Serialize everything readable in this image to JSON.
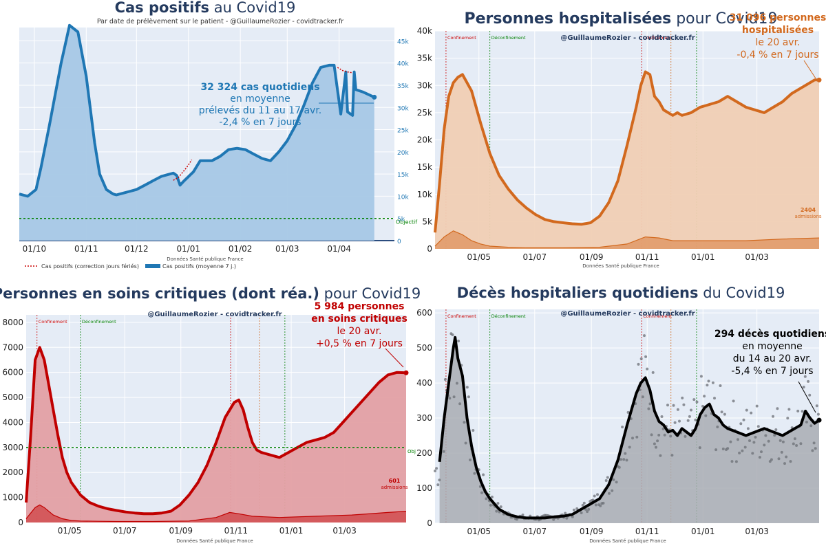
{
  "colors": {
    "blue": "#1f77b4",
    "blue_fill": "#a6c8e6",
    "orange": "#d2691e",
    "orange_fill": "#f0cfb4",
    "red": "#c00000",
    "red_fill": "#e3a0a4",
    "black": "#000000",
    "gray_fill": "#a9adb3",
    "plot_bg": "#e5ecf6",
    "navy": "#243a5e",
    "green": "#008000"
  },
  "chart_data": [
    {
      "id": "cases",
      "type": "area",
      "title_bold": "Cas positifs",
      "title_rest": " au Covid19",
      "subtitle": "Par date de prélèvement sur le patient - @GuillaumeRozier - covidtracker.fr",
      "xlabel": "Données Santé publique France",
      "y_side": "right",
      "ylim": [
        0,
        48000
      ],
      "x_range": [
        0,
        224
      ],
      "x_ticks": [
        {
          "x": 9,
          "label": "01/10"
        },
        {
          "x": 40,
          "label": "01/11"
        },
        {
          "x": 70,
          "label": "01/12"
        },
        {
          "x": 101,
          "label": "01/01"
        },
        {
          "x": 132,
          "label": "01/02"
        },
        {
          "x": 160,
          "label": "01/03"
        },
        {
          "x": 191,
          "label": "01/04"
        }
      ],
      "y_ticks": [
        {
          "v": 0,
          "label": "0"
        },
        {
          "v": 5000,
          "label": "5k"
        },
        {
          "v": 10000,
          "label": "10k"
        },
        {
          "v": 15000,
          "label": "15k"
        },
        {
          "v": 20000,
          "label": "20k"
        },
        {
          "v": 25000,
          "label": "25k"
        },
        {
          "v": 30000,
          "label": "30k"
        },
        {
          "v": 35000,
          "label": "35k"
        },
        {
          "v": 40000,
          "label": "40k"
        },
        {
          "v": 45000,
          "label": "45k"
        }
      ],
      "series": [
        {
          "name": "Cas positifs (moyenne 7 j.)",
          "x": [
            0,
            5,
            10,
            13,
            18,
            25,
            30,
            35,
            40,
            45,
            48,
            52,
            56,
            58,
            62,
            65,
            70,
            75,
            80,
            85,
            92,
            94,
            96,
            98,
            104,
            108,
            115,
            120,
            125,
            130,
            135,
            140,
            145,
            150,
            155,
            160,
            165,
            170,
            175,
            180,
            185,
            188,
            192,
            195,
            196,
            199,
            200,
            201,
            205,
            208,
            212
          ],
          "y": [
            10500,
            10000,
            11500,
            16500,
            26000,
            40000,
            48500,
            47000,
            37000,
            22000,
            15000,
            11500,
            10500,
            10300,
            10700,
            11000,
            11500,
            12500,
            13500,
            14500,
            15200,
            14700,
            12500,
            13300,
            15500,
            18000,
            18000,
            19000,
            20500,
            20800,
            20500,
            19500,
            18500,
            18000,
            20000,
            22500,
            26000,
            30500,
            35500,
            39000,
            39500,
            39500,
            28500,
            38000,
            29000,
            28200,
            38000,
            34000,
            33500,
            33000,
            32300
          ]
        },
        {
          "name": "Cas positifs (correction jours fériés)",
          "x": [
            92,
            95,
            100,
            103,
            190,
            193,
            196,
            199
          ],
          "y": [
            13600,
            14200,
            16500,
            18200,
            39000,
            38300,
            38000,
            37800
          ]
        }
      ],
      "objective": {
        "y": 5000,
        "label": "Objectif"
      },
      "legend": [
        "Cas positifs (correction jours fériés)",
        "Cas positifs (moyenne 7 j.)"
      ],
      "legend_position": "bottom-left",
      "annotation": [
        "32 324 cas quotidiens",
        "en moyenne",
        "prélevés du 11 au 17 avr.",
        "-2,4 % en 7 jours"
      ]
    },
    {
      "id": "hosp",
      "type": "area",
      "title_bold": "Personnes hospitalisées",
      "title_rest": " pour Covid19",
      "watermark": "@GuillaumeRozier - covidtracker.fr",
      "xlabel": "Données Santé publique France",
      "y_side": "left",
      "ylim": [
        0,
        40000
      ],
      "x_range": [
        0,
        420
      ],
      "x_ticks": [
        {
          "x": 48,
          "label": "01/05"
        },
        {
          "x": 109,
          "label": "01/07"
        },
        {
          "x": 171,
          "label": "01/09"
        },
        {
          "x": 232,
          "label": "01/11"
        },
        {
          "x": 293,
          "label": "01/01"
        },
        {
          "x": 352,
          "label": "01/03"
        }
      ],
      "y_ticks": [
        {
          "v": 0,
          "label": "0"
        },
        {
          "v": 5000,
          "label": "5k"
        },
        {
          "v": 10000,
          "label": "10k"
        },
        {
          "v": 15000,
          "label": "15k"
        },
        {
          "v": 20000,
          "label": "20k"
        },
        {
          "v": 25000,
          "label": "25k"
        },
        {
          "v": 30000,
          "label": "30k"
        },
        {
          "v": 35000,
          "label": "35k"
        },
        {
          "v": 40000,
          "label": "40k"
        }
      ],
      "series": [
        {
          "name": "Hospitalisations",
          "x": [
            0,
            5,
            10,
            15,
            20,
            25,
            30,
            40,
            50,
            60,
            70,
            80,
            90,
            100,
            110,
            120,
            130,
            140,
            150,
            160,
            170,
            180,
            190,
            200,
            210,
            220,
            225,
            230,
            235,
            240,
            245,
            250,
            255,
            260,
            265,
            270,
            280,
            290,
            300,
            310,
            320,
            330,
            340,
            350,
            360,
            370,
            380,
            390,
            400,
            410,
            415,
            420
          ],
          "y": [
            3000,
            12000,
            22000,
            28000,
            30500,
            31500,
            32000,
            29000,
            23000,
            17500,
            13500,
            11000,
            9000,
            7500,
            6300,
            5400,
            5000,
            4800,
            4600,
            4500,
            4800,
            6000,
            8500,
            12500,
            19000,
            26000,
            30000,
            32500,
            32000,
            28000,
            27000,
            25500,
            25000,
            24500,
            25000,
            24500,
            25000,
            26000,
            26500,
            27000,
            28000,
            27000,
            26000,
            25500,
            25000,
            26000,
            27000,
            28500,
            29500,
            30500,
            31000,
            31000
          ]
        },
        {
          "name": "Admissions",
          "x": [
            0,
            10,
            20,
            30,
            40,
            50,
            60,
            80,
            100,
            140,
            180,
            210,
            230,
            245,
            260,
            300,
            340,
            380,
            420
          ],
          "y": [
            500,
            2200,
            3300,
            2600,
            1500,
            900,
            500,
            300,
            200,
            200,
            300,
            900,
            2200,
            2000,
            1500,
            1500,
            1500,
            1800,
            2000
          ]
        }
      ],
      "vlines": [
        {
          "x": 12,
          "color": "#cc0000",
          "label": "Confinement"
        },
        {
          "x": 60,
          "color": "#008000",
          "label": "Déconfinement"
        },
        {
          "x": 226,
          "color": "#cc0000",
          "label": "Confinement"
        },
        {
          "x": 258,
          "color": "#d2691e",
          "label": ""
        },
        {
          "x": 286,
          "color": "#008000",
          "label": ""
        }
      ],
      "side_label": [
        "2404",
        "admissions"
      ],
      "annotation": [
        "31 096 personnes",
        "hospitalisées",
        "le 20 avr.",
        "-0,4 % en 7 jours"
      ]
    },
    {
      "id": "icu",
      "type": "area",
      "title_bold": "Personnes en soins critiques (dont réa.)",
      "title_rest": " pour Covid19",
      "watermark": "@GuillaumeRozier - covidtracker.fr",
      "xlabel": "Données Santé publique France",
      "y_side": "left",
      "ylim": [
        0,
        8300
      ],
      "x_range": [
        0,
        420
      ],
      "x_ticks": [
        {
          "x": 48,
          "label": "01/05"
        },
        {
          "x": 109,
          "label": "01/07"
        },
        {
          "x": 171,
          "label": "01/09"
        },
        {
          "x": 232,
          "label": "01/11"
        },
        {
          "x": 293,
          "label": "01/01"
        },
        {
          "x": 352,
          "label": "01/03"
        }
      ],
      "y_ticks": [
        {
          "v": 0,
          "label": "0"
        },
        {
          "v": 1000,
          "label": "1000"
        },
        {
          "v": 2000,
          "label": "2000"
        },
        {
          "v": 3000,
          "label": "3000"
        },
        {
          "v": 4000,
          "label": "4000"
        },
        {
          "v": 5000,
          "label": "5000"
        },
        {
          "v": 6000,
          "label": "6000"
        },
        {
          "v": 7000,
          "label": "7000"
        },
        {
          "v": 8000,
          "label": "8000"
        }
      ],
      "series": [
        {
          "name": "Soins critiques",
          "x": [
            0,
            5,
            10,
            15,
            20,
            25,
            30,
            35,
            40,
            45,
            50,
            60,
            70,
            80,
            90,
            100,
            110,
            120,
            130,
            140,
            150,
            160,
            170,
            180,
            190,
            200,
            210,
            220,
            230,
            235,
            240,
            245,
            250,
            255,
            260,
            270,
            280,
            290,
            300,
            310,
            320,
            330,
            340,
            350,
            360,
            370,
            380,
            390,
            400,
            410,
            420
          ],
          "y": [
            800,
            3500,
            6500,
            7000,
            6500,
            5500,
            4500,
            3500,
            2600,
            2000,
            1600,
            1100,
            800,
            650,
            550,
            480,
            420,
            380,
            350,
            350,
            380,
            450,
            700,
            1100,
            1600,
            2300,
            3200,
            4200,
            4800,
            4900,
            4500,
            3800,
            3200,
            2900,
            2800,
            2700,
            2600,
            2800,
            3000,
            3200,
            3300,
            3400,
            3600,
            4000,
            4400,
            4800,
            5200,
            5600,
            5900,
            6000,
            5984
          ]
        },
        {
          "name": "Admissions",
          "x": [
            0,
            10,
            15,
            20,
            30,
            40,
            50,
            60,
            80,
            100,
            140,
            180,
            210,
            225,
            235,
            250,
            280,
            320,
            360,
            400,
            420
          ],
          "y": [
            150,
            600,
            700,
            600,
            300,
            150,
            80,
            60,
            50,
            40,
            40,
            60,
            200,
            400,
            350,
            250,
            200,
            250,
            300,
            400,
            450
          ]
        }
      ],
      "vlines": [
        {
          "x": 12,
          "color": "#cc0000",
          "label": "Confinement"
        },
        {
          "x": 60,
          "color": "#008000",
          "label": "Déconfinement"
        },
        {
          "x": 226,
          "color": "#cc0000",
          "label": ""
        },
        {
          "x": 258,
          "color": "#d2691e",
          "label": ""
        },
        {
          "x": 286,
          "color": "#008000",
          "label": ""
        }
      ],
      "objective": {
        "y": 3000,
        "label": "Obj"
      },
      "side_label": [
        "601",
        "admissions"
      ],
      "annotation": [
        "5 984 personnes",
        "en soins critiques",
        "le 20 avr.",
        "+0,5 % en 7 jours"
      ]
    },
    {
      "id": "deaths",
      "type": "line",
      "title_bold": "Décès hospitaliers quotidiens",
      "title_rest": " du Covid19",
      "watermark": "@GuillaumeRozier - covidtracker.fr",
      "xlabel": "Données Santé publique France",
      "y_side": "left",
      "ylim": [
        0,
        610
      ],
      "x_range": [
        0,
        420
      ],
      "x_ticks": [
        {
          "x": 48,
          "label": "01/05"
        },
        {
          "x": 109,
          "label": "01/07"
        },
        {
          "x": 171,
          "label": "01/09"
        },
        {
          "x": 232,
          "label": "01/11"
        },
        {
          "x": 293,
          "label": "01/01"
        },
        {
          "x": 352,
          "label": "01/03"
        }
      ],
      "y_ticks": [
        {
          "v": 0,
          "label": "0"
        },
        {
          "v": 100,
          "label": "100"
        },
        {
          "v": 200,
          "label": "200"
        },
        {
          "v": 300,
          "label": "300"
        },
        {
          "v": 400,
          "label": "400"
        },
        {
          "v": 500,
          "label": "500"
        },
        {
          "v": 600,
          "label": "600"
        }
      ],
      "series": [
        {
          "name": "Décès (moyenne 7 j.)",
          "x": [
            5,
            10,
            15,
            20,
            22,
            25,
            30,
            35,
            40,
            45,
            50,
            55,
            60,
            70,
            80,
            90,
            100,
            110,
            120,
            130,
            140,
            150,
            160,
            170,
            180,
            190,
            200,
            210,
            220,
            225,
            230,
            235,
            240,
            245,
            250,
            255,
            260,
            265,
            270,
            275,
            280,
            285,
            290,
            295,
            300,
            305,
            310,
            315,
            320,
            330,
            340,
            350,
            360,
            370,
            380,
            390,
            400,
            405,
            410,
            415,
            420
          ],
          "y": [
            175,
            300,
            400,
            500,
            530,
            470,
            420,
            300,
            220,
            160,
            120,
            90,
            70,
            40,
            25,
            18,
            15,
            15,
            15,
            18,
            20,
            25,
            40,
            55,
            70,
            110,
            180,
            280,
            370,
            400,
            415,
            380,
            320,
            290,
            280,
            260,
            265,
            250,
            270,
            260,
            250,
            270,
            310,
            330,
            340,
            310,
            300,
            280,
            270,
            260,
            250,
            260,
            270,
            260,
            250,
            265,
            280,
            320,
            300,
            285,
            294
          ]
        }
      ],
      "vlines": [
        {
          "x": 12,
          "color": "#cc0000",
          "label": "Confinement"
        },
        {
          "x": 60,
          "color": "#008000",
          "label": "Déconfinement"
        },
        {
          "x": 226,
          "color": "#cc0000",
          "label": "Confinement"
        },
        {
          "x": 258,
          "color": "#d2691e",
          "label": ""
        },
        {
          "x": 286,
          "color": "#008000",
          "label": ""
        }
      ],
      "annotation": [
        "294 décès quotidiens",
        "en moyenne",
        "du 14 au 20 avr.",
        "-5,4 % en 7 jours"
      ]
    }
  ]
}
